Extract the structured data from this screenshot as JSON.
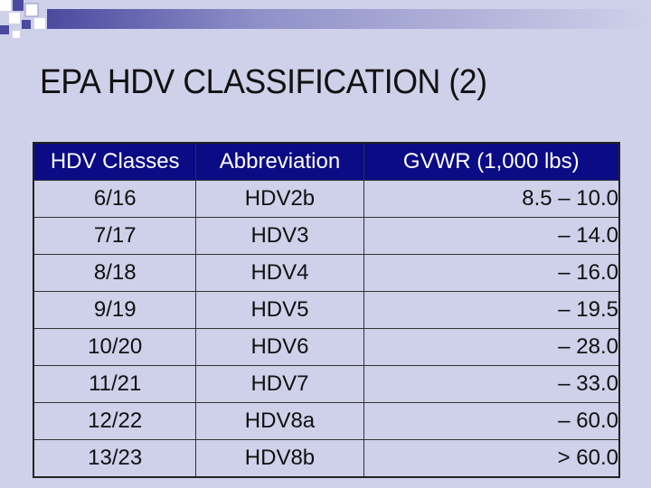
{
  "title": "EPA HDV CLASSIFICATION (2)",
  "table": {
    "headers": [
      "HDV Classes",
      "Abbreviation",
      "GVWR (1,000 lbs)"
    ],
    "rows": [
      [
        "6/16",
        "HDV2b",
        "8.5 – 10.0"
      ],
      [
        "7/17",
        "HDV3",
        "– 14.0"
      ],
      [
        "8/18",
        "HDV4",
        "– 16.0"
      ],
      [
        "9/19",
        "HDV5",
        "– 19.5"
      ],
      [
        "10/20",
        "HDV6",
        "– 28.0"
      ],
      [
        "11/21",
        "HDV7",
        "– 33.0"
      ],
      [
        "12/22",
        "HDV8a",
        "– 60.0"
      ],
      [
        "13/23",
        "HDV8b",
        "> 60.0"
      ]
    ]
  },
  "colors": {
    "background": "#cfd0e9",
    "header_fill": "#0b0b86",
    "accent": "#5b5ba8"
  }
}
